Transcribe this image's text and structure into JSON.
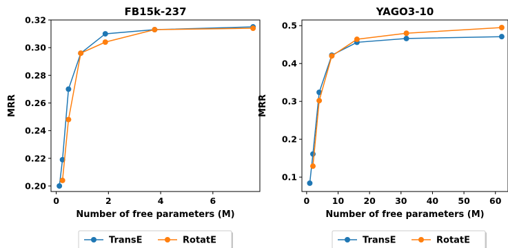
{
  "chart_data": [
    {
      "type": "line",
      "title": "FB15k-237",
      "xlabel": "Number of free parameters (M)",
      "ylabel": "MRR",
      "xlim": [
        -0.2,
        7.8
      ],
      "ylim": [
        0.196,
        0.32
      ],
      "xticks": [
        0,
        2,
        4,
        6
      ],
      "yticks": [
        0.2,
        0.22,
        0.24,
        0.26,
        0.28,
        0.3,
        0.32
      ],
      "ytick_labels": [
        "0.20",
        "0.22",
        "0.24",
        "0.26",
        "0.28",
        "0.30",
        "0.32"
      ],
      "grid": false,
      "legend": "bottom-center, below axes",
      "series": [
        {
          "name": "TransE",
          "color": "#1f77b4",
          "x": [
            0.12,
            0.24,
            0.47,
            0.94,
            1.88,
            3.77,
            7.54
          ],
          "y": [
            0.2,
            0.219,
            0.27,
            0.296,
            0.31,
            0.313,
            0.315
          ]
        },
        {
          "name": "RotatE",
          "color": "#ff7f0e",
          "x": [
            0.24,
            0.47,
            0.94,
            1.88,
            3.77,
            7.54
          ],
          "y": [
            0.204,
            0.248,
            0.296,
            0.304,
            0.313,
            0.314
          ]
        }
      ]
    },
    {
      "type": "line",
      "title": "YAGO3-10",
      "xlabel": "Number of free parameters (M)",
      "ylabel": "MRR",
      "xlim": [
        -1.5,
        64
      ],
      "ylim": [
        0.062,
        0.515
      ],
      "xticks": [
        0,
        10,
        20,
        30,
        40,
        50,
        60
      ],
      "yticks": [
        0.1,
        0.2,
        0.3,
        0.4,
        0.5
      ],
      "ytick_labels": [
        "0.1",
        "0.2",
        "0.3",
        "0.4",
        "0.5"
      ],
      "grid": false,
      "legend": "bottom-center, below axes",
      "series": [
        {
          "name": "TransE",
          "color": "#1f77b4",
          "x": [
            1.0,
            2.0,
            4.0,
            8.0,
            16.0,
            31.7,
            62.0
          ],
          "y": [
            0.084,
            0.161,
            0.324,
            0.422,
            0.456,
            0.466,
            0.471
          ]
        },
        {
          "name": "RotatE",
          "color": "#ff7f0e",
          "x": [
            2.0,
            4.0,
            8.0,
            16.0,
            31.7,
            62.0
          ],
          "y": [
            0.129,
            0.302,
            0.42,
            0.464,
            0.48,
            0.495
          ]
        }
      ]
    }
  ]
}
